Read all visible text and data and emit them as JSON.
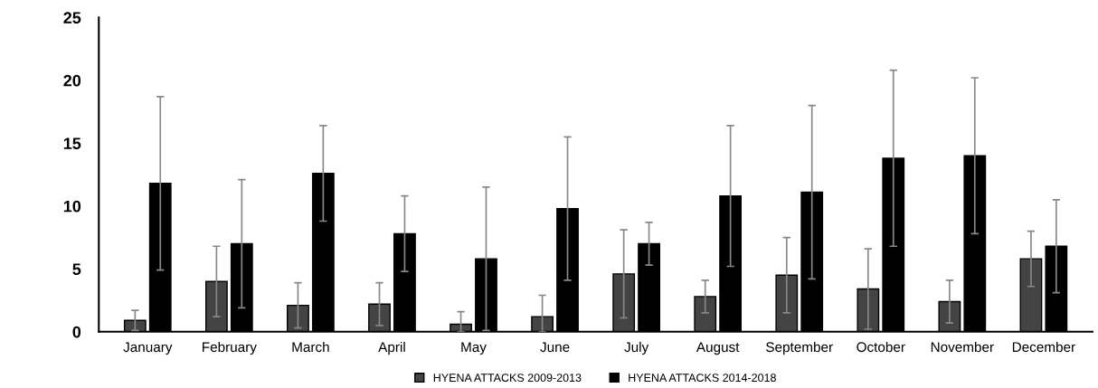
{
  "chart_data": {
    "type": "bar",
    "categories": [
      "January",
      "February",
      "March",
      "April",
      "May",
      "June",
      "July",
      "August",
      "September",
      "October",
      "November",
      "December"
    ],
    "series": [
      {
        "name": "HYENA ATTACKS 2009-2013",
        "color": "#444444",
        "values": [
          0.9,
          4.0,
          2.1,
          2.2,
          0.6,
          1.2,
          4.6,
          2.8,
          4.5,
          3.4,
          2.4,
          5.8
        ],
        "errors": [
          0.8,
          2.8,
          1.8,
          1.7,
          [
            0,
            1.6
          ],
          [
            0,
            2.9
          ],
          3.5,
          1.3,
          3.0,
          3.2,
          1.7,
          2.2
        ]
      },
      {
        "name": "HYENA ATTACKS 2014-2018",
        "color": "#000000",
        "values": [
          11.8,
          7.0,
          12.6,
          7.8,
          5.8,
          9.8,
          7.0,
          10.8,
          11.1,
          13.8,
          14.0,
          6.8
        ],
        "errors": [
          6.9,
          5.1,
          3.8,
          3.0,
          5.7,
          5.7,
          1.7,
          5.6,
          6.9,
          7.0,
          6.2,
          3.7
        ]
      }
    ],
    "ylim": [
      0,
      25
    ],
    "yticks": [
      0,
      5,
      10,
      15,
      20,
      25
    ],
    "grid": false,
    "legend": "bottom"
  }
}
